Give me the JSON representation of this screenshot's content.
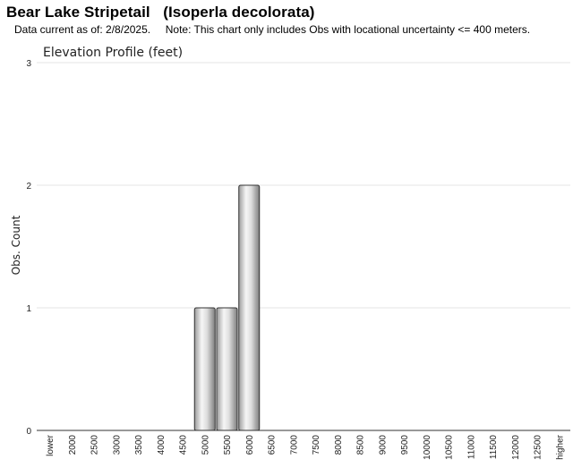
{
  "header": {
    "title": "Bear Lake Stripetail   (Isoperla decolorata)",
    "subtitle": "Data current as of: 2/8/2025.     Note: This chart only includes Obs with locational uncertainty <= 400 meters."
  },
  "chart_data": {
    "type": "bar",
    "title": "Elevation Profile (feet)",
    "xlabel": "",
    "ylabel": "Obs. Count",
    "ylim": [
      0,
      3
    ],
    "yticks": [
      "0",
      "1",
      "2",
      "3"
    ],
    "categories": [
      "lower",
      "2000",
      "2500",
      "3000",
      "3500",
      "4000",
      "4500",
      "5000",
      "5500",
      "6000",
      "6500",
      "7000",
      "7500",
      "8000",
      "8500",
      "9000",
      "9500",
      "10000",
      "10500",
      "11000",
      "11500",
      "12000",
      "12500",
      "higher"
    ],
    "values": [
      0,
      0,
      0,
      0,
      0,
      0,
      0,
      1,
      1,
      2,
      0,
      0,
      0,
      0,
      0,
      0,
      0,
      0,
      0,
      0,
      0,
      0,
      0,
      0
    ],
    "grid": true,
    "colors": {
      "bar_edge": "#333333",
      "bar_light": "#f4f4f4",
      "bar_dark": "#8a8a8a",
      "grid": "#e4e4e4"
    }
  }
}
